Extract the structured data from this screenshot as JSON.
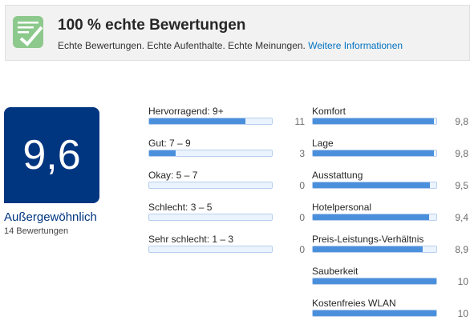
{
  "banner": {
    "title": "100 % echte Bewertungen",
    "subtitle": "Echte Bewertungen. Echte Aufenthalte. Echte Meinungen.",
    "link": "Weitere Informationen"
  },
  "summary": {
    "score": "9,6",
    "rating": "Außergewöhnlich",
    "review_count": {
      "value": 14,
      "label": "14 Bewertungen"
    }
  },
  "distribution": {
    "categories": [
      "Hervorragend: 9+",
      "Gut: 7 – 9",
      "Okay: 5 – 7",
      "Schlecht: 3 – 5",
      "Sehr schlecht: 1 – 3"
    ],
    "values": [
      11,
      3,
      0,
      0,
      0
    ]
  },
  "scores": {
    "range": [
      0,
      10
    ],
    "categories": [
      "Komfort",
      "Lage",
      "Ausstattung",
      "Hotelpersonal",
      "Preis-Leistungs-Verhältnis",
      "Sauberkeit",
      "Kostenfreies WLAN"
    ],
    "values": [
      {
        "value": 9.8,
        "label": "9,8"
      },
      {
        "value": 9.8,
        "label": "9,8"
      },
      {
        "value": 9.5,
        "label": "9,5"
      },
      {
        "value": 9.4,
        "label": "9,4"
      },
      {
        "value": 8.9,
        "label": "8,9"
      },
      10,
      10
    ]
  }
}
